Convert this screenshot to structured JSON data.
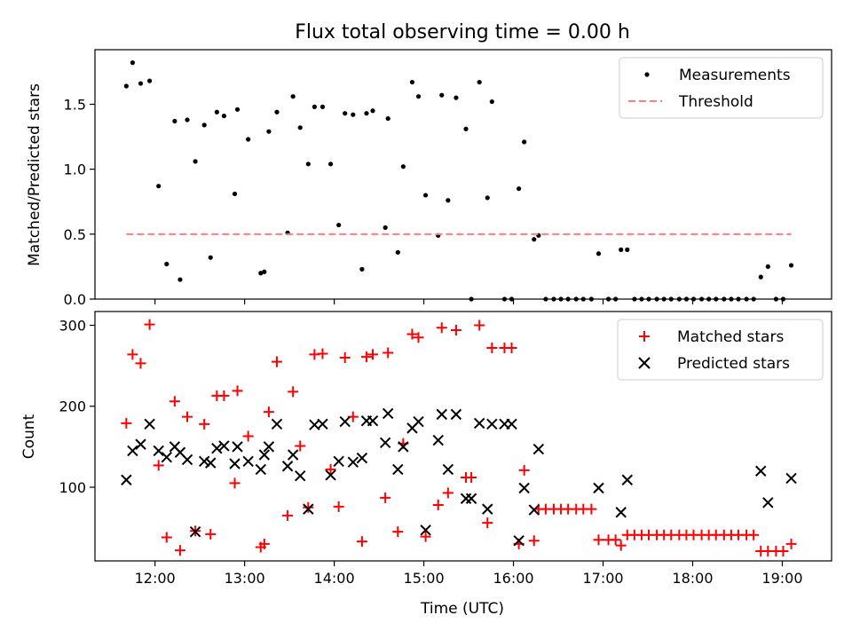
{
  "chart_data": [
    {
      "type": "scatter",
      "title": "Flux total observing time = 0.00 h",
      "xlabel": "",
      "ylabel": "Matched/Predicted stars",
      "xlim": [
        11.33,
        19.55
      ],
      "ylim": [
        0,
        1.92
      ],
      "yticks": [
        0.0,
        0.5,
        1.0,
        1.5
      ],
      "ytick_labels": [
        "0.0",
        "0.5",
        "1.0",
        "1.5"
      ],
      "xticks": [
        12,
        13,
        14,
        15,
        16,
        17,
        18,
        19
      ],
      "legend_position": "top-right",
      "grid": false,
      "series": [
        {
          "name": "Measurements",
          "kind": "scatter",
          "marker": "dot",
          "color": "#000000",
          "points": [
            [
              11.68,
              1.64
            ],
            [
              11.75,
              1.82
            ],
            [
              11.84,
              1.66
            ],
            [
              11.94,
              1.68
            ],
            [
              12.04,
              0.87
            ],
            [
              12.13,
              0.27
            ],
            [
              12.22,
              1.37
            ],
            [
              12.28,
              0.15
            ],
            [
              12.36,
              1.38
            ],
            [
              12.45,
              1.06
            ],
            [
              12.55,
              1.34
            ],
            [
              12.62,
              0.32
            ],
            [
              12.69,
              1.44
            ],
            [
              12.77,
              1.41
            ],
            [
              12.89,
              0.81
            ],
            [
              12.92,
              1.46
            ],
            [
              13.04,
              1.23
            ],
            [
              13.18,
              0.2
            ],
            [
              13.22,
              0.21
            ],
            [
              13.27,
              1.29
            ],
            [
              13.36,
              1.44
            ],
            [
              13.48,
              0.51
            ],
            [
              13.54,
              1.56
            ],
            [
              13.62,
              1.32
            ],
            [
              13.71,
              1.04
            ],
            [
              13.78,
              1.48
            ],
            [
              13.87,
              1.48
            ],
            [
              13.96,
              1.04
            ],
            [
              14.05,
              0.57
            ],
            [
              14.12,
              1.43
            ],
            [
              14.21,
              1.42
            ],
            [
              14.31,
              0.23
            ],
            [
              14.36,
              1.43
            ],
            [
              14.43,
              1.45
            ],
            [
              14.57,
              0.55
            ],
            [
              14.6,
              1.39
            ],
            [
              14.71,
              0.36
            ],
            [
              14.77,
              1.02
            ],
            [
              14.87,
              1.67
            ],
            [
              14.94,
              1.56
            ],
            [
              15.02,
              0.8
            ],
            [
              15.16,
              0.49
            ],
            [
              15.2,
              1.57
            ],
            [
              15.27,
              0.76
            ],
            [
              15.36,
              1.55
            ],
            [
              15.47,
              1.31
            ],
            [
              15.53,
              0.0
            ],
            [
              15.62,
              1.67
            ],
            [
              15.71,
              0.78
            ],
            [
              15.76,
              1.52
            ],
            [
              15.9,
              0.0
            ],
            [
              15.98,
              0.0
            ],
            [
              16.06,
              0.85
            ],
            [
              16.12,
              1.21
            ],
            [
              16.23,
              0.46
            ],
            [
              16.28,
              0.49
            ],
            [
              16.36,
              0.0
            ],
            [
              16.45,
              0.0
            ],
            [
              16.53,
              0.0
            ],
            [
              16.61,
              0.0
            ],
            [
              16.7,
              0.0
            ],
            [
              16.78,
              0.0
            ],
            [
              16.87,
              0.0
            ],
            [
              16.95,
              0.35
            ],
            [
              17.06,
              0.0
            ],
            [
              17.14,
              0.0
            ],
            [
              17.2,
              0.38
            ],
            [
              17.27,
              0.38
            ],
            [
              17.35,
              0.0
            ],
            [
              17.43,
              0.0
            ],
            [
              17.51,
              0.0
            ],
            [
              17.6,
              0.0
            ],
            [
              17.68,
              0.0
            ],
            [
              17.76,
              0.0
            ],
            [
              17.85,
              0.0
            ],
            [
              17.93,
              0.0
            ],
            [
              18.01,
              0.0
            ],
            [
              18.1,
              0.0
            ],
            [
              18.18,
              0.0
            ],
            [
              18.26,
              0.0
            ],
            [
              18.35,
              0.0
            ],
            [
              18.43,
              0.0
            ],
            [
              18.51,
              0.0
            ],
            [
              18.6,
              0.0
            ],
            [
              18.68,
              0.0
            ],
            [
              18.76,
              0.17
            ],
            [
              18.84,
              0.25
            ],
            [
              18.93,
              0.0
            ],
            [
              19.01,
              0.0
            ],
            [
              19.1,
              0.26
            ]
          ]
        },
        {
          "name": "Threshold",
          "kind": "line",
          "dash": "dashed",
          "color": "#ff7f7f",
          "points": [
            [
              11.68,
              0.5
            ],
            [
              19.1,
              0.5
            ]
          ]
        }
      ]
    },
    {
      "type": "scatter",
      "title": "",
      "xlabel": "Time (UTC)",
      "ylabel": "Count",
      "xlim": [
        11.33,
        19.55
      ],
      "ylim": [
        9,
        317
      ],
      "yticks": [
        100,
        200,
        300
      ],
      "ytick_labels": [
        "100",
        "200",
        "300"
      ],
      "xticks": [
        12,
        13,
        14,
        15,
        16,
        17,
        18,
        19
      ],
      "xtick_labels": [
        "12:00",
        "13:00",
        "14:00",
        "15:00",
        "16:00",
        "17:00",
        "18:00",
        "19:00"
      ],
      "legend_position": "top-right",
      "grid": false,
      "series": [
        {
          "name": "Matched stars",
          "kind": "scatter",
          "marker": "plus",
          "color": "#ff0000",
          "points": [
            [
              11.68,
              179
            ],
            [
              11.75,
              264
            ],
            [
              11.84,
              253
            ],
            [
              11.94,
              301
            ],
            [
              12.04,
              127
            ],
            [
              12.13,
              38
            ],
            [
              12.22,
              206
            ],
            [
              12.28,
              22
            ],
            [
              12.36,
              187
            ],
            [
              12.45,
              46
            ],
            [
              12.55,
              178
            ],
            [
              12.62,
              42
            ],
            [
              12.69,
              213
            ],
            [
              12.77,
              213
            ],
            [
              12.89,
              105
            ],
            [
              12.92,
              219
            ],
            [
              13.04,
              163
            ],
            [
              13.18,
              26
            ],
            [
              13.22,
              30
            ],
            [
              13.27,
              193
            ],
            [
              13.36,
              255
            ],
            [
              13.48,
              65
            ],
            [
              13.54,
              218
            ],
            [
              13.62,
              151
            ],
            [
              13.71,
              75
            ],
            [
              13.78,
              264
            ],
            [
              13.87,
              265
            ],
            [
              13.96,
              122
            ],
            [
              14.05,
              76
            ],
            [
              14.12,
              260
            ],
            [
              14.21,
              187
            ],
            [
              14.31,
              33
            ],
            [
              14.36,
              261
            ],
            [
              14.43,
              264
            ],
            [
              14.57,
              87
            ],
            [
              14.6,
              266
            ],
            [
              14.71,
              45
            ],
            [
              14.77,
              154
            ],
            [
              14.87,
              289
            ],
            [
              14.94,
              285
            ],
            [
              15.02,
              39
            ],
            [
              15.16,
              78
            ],
            [
              15.2,
              297
            ],
            [
              15.27,
              93
            ],
            [
              15.36,
              294
            ],
            [
              15.47,
              112
            ],
            [
              15.53,
              112
            ],
            [
              15.62,
              300
            ],
            [
              15.71,
              56
            ],
            [
              15.76,
              272
            ],
            [
              15.9,
              272
            ],
            [
              15.98,
              272
            ],
            [
              16.06,
              30
            ],
            [
              16.12,
              121
            ],
            [
              16.23,
              34
            ],
            [
              16.28,
              73
            ],
            [
              16.36,
              73
            ],
            [
              16.45,
              73
            ],
            [
              16.53,
              73
            ],
            [
              16.61,
              73
            ],
            [
              16.7,
              73
            ],
            [
              16.78,
              73
            ],
            [
              16.87,
              73
            ],
            [
              16.95,
              35
            ],
            [
              17.06,
              35
            ],
            [
              17.14,
              35
            ],
            [
              17.2,
              28
            ],
            [
              17.27,
              41
            ],
            [
              17.35,
              41
            ],
            [
              17.43,
              41
            ],
            [
              17.51,
              41
            ],
            [
              17.6,
              41
            ],
            [
              17.68,
              41
            ],
            [
              17.76,
              41
            ],
            [
              17.85,
              41
            ],
            [
              17.93,
              41
            ],
            [
              18.01,
              41
            ],
            [
              18.1,
              41
            ],
            [
              18.18,
              41
            ],
            [
              18.26,
              41
            ],
            [
              18.35,
              41
            ],
            [
              18.43,
              41
            ],
            [
              18.51,
              41
            ],
            [
              18.6,
              41
            ],
            [
              18.68,
              41
            ],
            [
              18.76,
              21
            ],
            [
              18.84,
              21
            ],
            [
              18.93,
              21
            ],
            [
              19.01,
              21
            ],
            [
              19.1,
              30
            ]
          ]
        },
        {
          "name": "Predicted stars",
          "kind": "scatter",
          "marker": "x",
          "color": "#000000",
          "points": [
            [
              11.68,
              109
            ],
            [
              11.75,
              145
            ],
            [
              11.84,
              153
            ],
            [
              11.94,
              178
            ],
            [
              12.04,
              145
            ],
            [
              12.13,
              137
            ],
            [
              12.22,
              150
            ],
            [
              12.28,
              143
            ],
            [
              12.36,
              134
            ],
            [
              12.45,
              45
            ],
            [
              12.55,
              132
            ],
            [
              12.62,
              130
            ],
            [
              12.69,
              148
            ],
            [
              12.77,
              151
            ],
            [
              12.89,
              129
            ],
            [
              12.92,
              150
            ],
            [
              13.04,
              132
            ],
            [
              13.18,
              122
            ],
            [
              13.22,
              140
            ],
            [
              13.27,
              150
            ],
            [
              13.36,
              178
            ],
            [
              13.48,
              126
            ],
            [
              13.54,
              140
            ],
            [
              13.62,
              114
            ],
            [
              13.71,
              73
            ],
            [
              13.78,
              177
            ],
            [
              13.87,
              178
            ],
            [
              13.96,
              115
            ],
            [
              14.05,
              132
            ],
            [
              14.12,
              181
            ],
            [
              14.21,
              131
            ],
            [
              14.31,
              136
            ],
            [
              14.36,
              182
            ],
            [
              14.43,
              182
            ],
            [
              14.57,
              155
            ],
            [
              14.6,
              191
            ],
            [
              14.71,
              122
            ],
            [
              14.77,
              150
            ],
            [
              14.87,
              173
            ],
            [
              14.94,
              181
            ],
            [
              15.02,
              47
            ],
            [
              15.16,
              158
            ],
            [
              15.2,
              190
            ],
            [
              15.27,
              122
            ],
            [
              15.36,
              190
            ],
            [
              15.47,
              86
            ],
            [
              15.53,
              86
            ],
            [
              15.62,
              179
            ],
            [
              15.71,
              73
            ],
            [
              15.76,
              178
            ],
            [
              15.9,
              178
            ],
            [
              15.98,
              178
            ],
            [
              16.06,
              34
            ],
            [
              16.12,
              99
            ],
            [
              16.23,
              72
            ],
            [
              16.28,
              147
            ],
            [
              16.95,
              99
            ],
            [
              17.2,
              69
            ],
            [
              17.27,
              109
            ],
            [
              18.76,
              120
            ],
            [
              18.84,
              81
            ],
            [
              19.1,
              111
            ]
          ]
        }
      ]
    }
  ]
}
